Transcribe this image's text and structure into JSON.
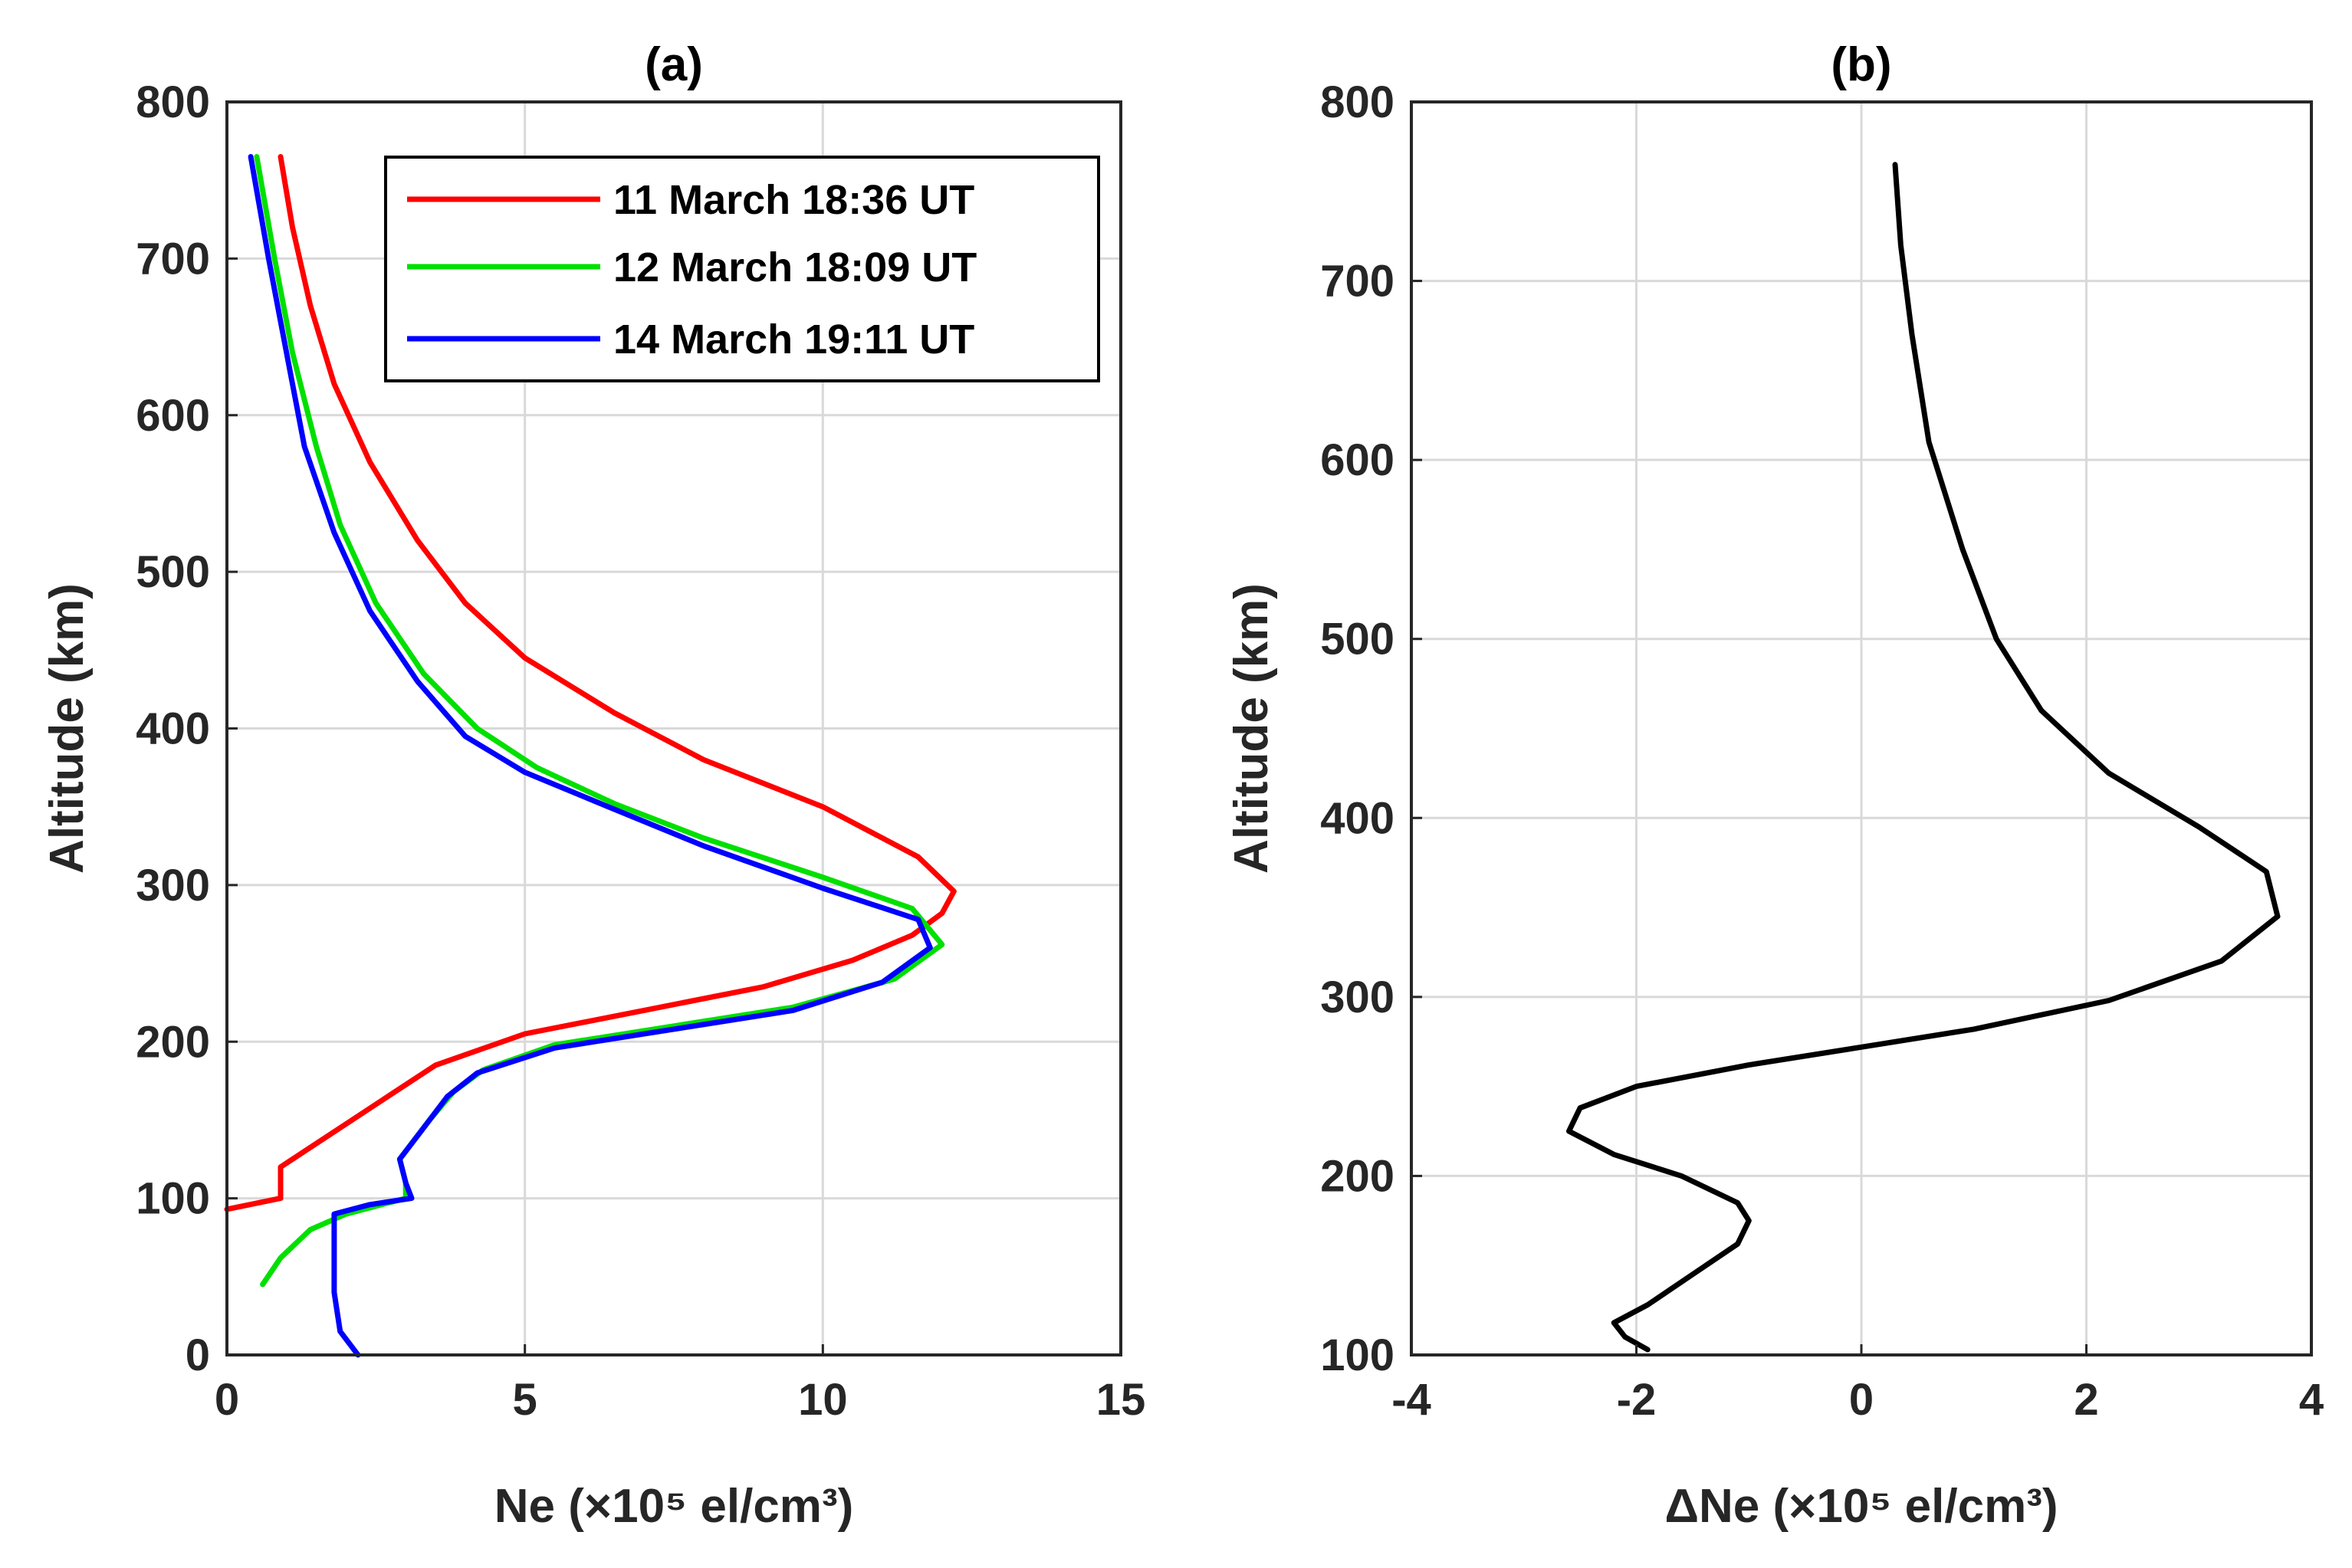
{
  "chart_data": [
    {
      "type": "line",
      "title": "(a)",
      "xlabel": "Ne (×10⁵ el/cm³)",
      "ylabel": "Altitude (km)",
      "xlim": [
        0,
        15
      ],
      "ylim": [
        0,
        800
      ],
      "xticks": [
        "0",
        "5",
        "10",
        "15"
      ],
      "yticks": [
        "0",
        "100",
        "200",
        "300",
        "400",
        "500",
        "600",
        "700",
        "800"
      ],
      "grid": true,
      "legend_position": "top-right",
      "series": [
        {
          "name": "11 March 18:36 UT",
          "color": "#ff0000",
          "points": [
            [
              0.0,
              93
            ],
            [
              0.9,
              100
            ],
            [
              0.9,
              120
            ],
            [
              1.3,
              130
            ],
            [
              2.5,
              160
            ],
            [
              3.5,
              185
            ],
            [
              5.0,
              205
            ],
            [
              7.0,
              220
            ],
            [
              9.0,
              235
            ],
            [
              10.5,
              252
            ],
            [
              11.5,
              268
            ],
            [
              12.0,
              282
            ],
            [
              12.2,
              296
            ],
            [
              11.6,
              318
            ],
            [
              10.0,
              350
            ],
            [
              8.0,
              380
            ],
            [
              6.5,
              410
            ],
            [
              5.0,
              445
            ],
            [
              4.0,
              480
            ],
            [
              3.2,
              520
            ],
            [
              2.4,
              570
            ],
            [
              1.8,
              620
            ],
            [
              1.4,
              670
            ],
            [
              1.1,
              720
            ],
            [
              0.9,
              765
            ]
          ]
        },
        {
          "name": "12 March 18:09 UT",
          "color": "#00e000",
          "points": [
            [
              0.6,
              45
            ],
            [
              0.9,
              62
            ],
            [
              1.4,
              80
            ],
            [
              2.0,
              90
            ],
            [
              3.0,
              100
            ],
            [
              3.0,
              110
            ],
            [
              2.9,
              125
            ],
            [
              3.4,
              150
            ],
            [
              3.8,
              168
            ],
            [
              4.3,
              182
            ],
            [
              5.5,
              198
            ],
            [
              7.5,
              210
            ],
            [
              9.5,
              222
            ],
            [
              11.2,
              240
            ],
            [
              12.0,
              262
            ],
            [
              11.5,
              285
            ],
            [
              10.0,
              305
            ],
            [
              8.0,
              330
            ],
            [
              6.5,
              352
            ],
            [
              5.2,
              375
            ],
            [
              4.2,
              400
            ],
            [
              3.3,
              435
            ],
            [
              2.5,
              480
            ],
            [
              1.9,
              530
            ],
            [
              1.5,
              580
            ],
            [
              1.1,
              640
            ],
            [
              0.8,
              700
            ],
            [
              0.5,
              765
            ]
          ]
        },
        {
          "name": "14 March 19:11 UT",
          "color": "#0000ff",
          "points": [
            [
              2.2,
              0
            ],
            [
              1.9,
              15
            ],
            [
              1.8,
              40
            ],
            [
              1.8,
              70
            ],
            [
              1.8,
              90
            ],
            [
              2.4,
              96
            ],
            [
              3.1,
              100
            ],
            [
              3.0,
              110
            ],
            [
              2.9,
              125
            ],
            [
              3.3,
              145
            ],
            [
              3.7,
              165
            ],
            [
              4.2,
              180
            ],
            [
              5.5,
              196
            ],
            [
              7.5,
              208
            ],
            [
              9.5,
              220
            ],
            [
              11.0,
              238
            ],
            [
              11.8,
              260
            ],
            [
              11.6,
              278
            ],
            [
              10.0,
              298
            ],
            [
              8.0,
              325
            ],
            [
              6.4,
              350
            ],
            [
              5.0,
              372
            ],
            [
              4.0,
              395
            ],
            [
              3.2,
              430
            ],
            [
              2.4,
              475
            ],
            [
              1.8,
              525
            ],
            [
              1.3,
              580
            ],
            [
              1.0,
              640
            ],
            [
              0.7,
              700
            ],
            [
              0.4,
              765
            ]
          ]
        }
      ]
    },
    {
      "type": "line",
      "title": "(b)",
      "xlabel": "ΔNe (×10⁵ el/cm³)",
      "ylabel": "Altitude (km)",
      "xlim": [
        -4,
        4
      ],
      "ylim": [
        100,
        800
      ],
      "xticks": [
        "-4",
        "-2",
        "0",
        "2",
        "4"
      ],
      "yticks": [
        "100",
        "200",
        "300",
        "400",
        "500",
        "600",
        "700",
        "800"
      ],
      "grid": true,
      "series": [
        {
          "name": "ΔNe",
          "color": "#000000",
          "points": [
            [
              -1.9,
              103
            ],
            [
              -2.1,
              110
            ],
            [
              -2.2,
              118
            ],
            [
              -1.9,
              128
            ],
            [
              -1.5,
              145
            ],
            [
              -1.1,
              162
            ],
            [
              -1.0,
              175
            ],
            [
              -1.1,
              185
            ],
            [
              -1.6,
              200
            ],
            [
              -2.2,
              212
            ],
            [
              -2.6,
              225
            ],
            [
              -2.5,
              238
            ],
            [
              -2.0,
              250
            ],
            [
              -1.0,
              262
            ],
            [
              0.0,
              272
            ],
            [
              1.0,
              282
            ],
            [
              2.2,
              298
            ],
            [
              3.2,
              320
            ],
            [
              3.7,
              345
            ],
            [
              3.6,
              370
            ],
            [
              3.0,
              395
            ],
            [
              2.2,
              425
            ],
            [
              1.6,
              460
            ],
            [
              1.2,
              500
            ],
            [
              0.9,
              550
            ],
            [
              0.6,
              610
            ],
            [
              0.45,
              670
            ],
            [
              0.35,
              720
            ],
            [
              0.3,
              765
            ]
          ]
        }
      ]
    }
  ]
}
